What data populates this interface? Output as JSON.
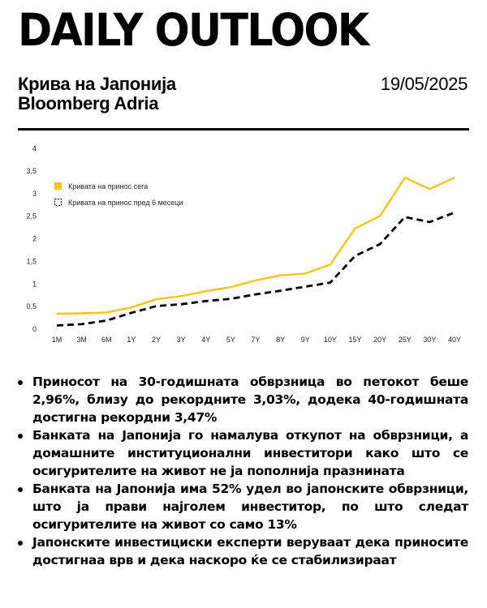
{
  "header": {
    "brand": "DAILY OUTLOOK",
    "title": "Крива на Јапонија",
    "source": "Bloomberg Adria",
    "date": "19/05/2025"
  },
  "chart_data": {
    "type": "line",
    "categories": [
      "1M",
      "3M",
      "6M",
      "1Y",
      "2Y",
      "3Y",
      "4Y",
      "5Y",
      "7Y",
      "8Y",
      "9Y",
      "10Y",
      "15Y",
      "20Y",
      "25Y",
      "30Y",
      "40Y"
    ],
    "ylim": [
      0,
      4
    ],
    "yticks": [
      "0",
      "0,5",
      "1",
      "1,5",
      "2",
      "2,5",
      "3",
      "3,5",
      "4"
    ],
    "legend_position": "top-left",
    "grid": false,
    "series": [
      {
        "name": "Кривата на принос сега",
        "color": "#F5C518",
        "style": "solid",
        "values": [
          0.34,
          0.35,
          0.37,
          0.48,
          0.66,
          0.73,
          0.84,
          0.93,
          1.08,
          1.19,
          1.23,
          1.43,
          2.23,
          2.5,
          3.35,
          3.1,
          3.35
        ]
      },
      {
        "name": "Кривата на принос пред 6 месеци",
        "color": "#000000",
        "style": "dashed",
        "values": [
          0.08,
          0.11,
          0.19,
          0.36,
          0.51,
          0.55,
          0.62,
          0.67,
          0.77,
          0.85,
          0.94,
          1.03,
          1.62,
          1.88,
          2.48,
          2.37,
          2.58
        ]
      }
    ]
  },
  "bullets": [
    "Приносот на 30-годишната обврзница во петокот беше 2,96%, близу до рекордните 3,03%, додека 40-годишната достигна рекордни 3,47%",
    "Банката на Јапонија го намалува откупот на обврзници, а домашните институционални инвеститори како што се осигурителите на живот не ја пополнија празнината",
    "Банката на Јапонија има 52% удел во јапонските обврзници, што ја прави најголем инвеститор, по што следат осигурителите на живот со само 13%",
    "Јапонските инвестициски експерти веруваат дека приносите достигнаа врв и дека наскоро ќе се стабилизираат"
  ]
}
